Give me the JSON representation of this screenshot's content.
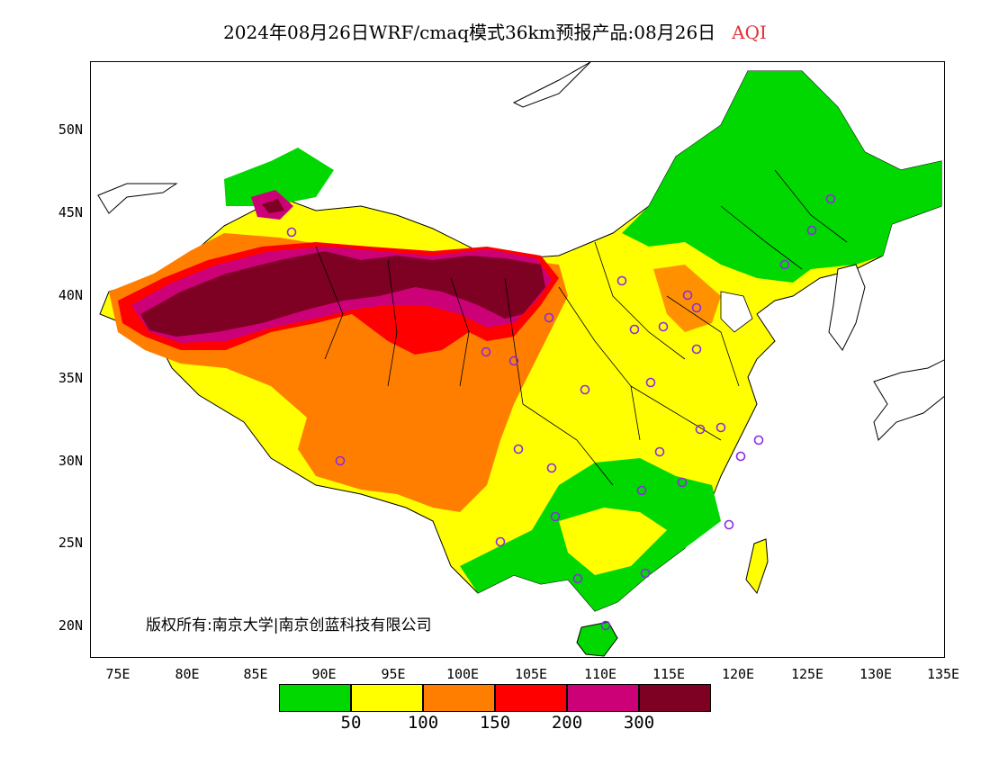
{
  "title": {
    "main": "2024年08月26日WRF/cmaq模式36km预报产品:08月26日",
    "variable": "AQI"
  },
  "copyright": "版权所有:南京大学|南京创蓝科技有限公司",
  "axes": {
    "lat_labels": [
      "50N",
      "45N",
      "40N",
      "35N",
      "30N",
      "25N",
      "20N"
    ],
    "lon_labels": [
      "75E",
      "80E",
      "85E",
      "90E",
      "95E",
      "100E",
      "105E",
      "110E",
      "115E",
      "120E",
      "125E",
      "130E",
      "135E"
    ]
  },
  "legend": {
    "colors": [
      "#00d800",
      "#ffff00",
      "#ff7e00",
      "#ff0000",
      "#cc0077",
      "#7e0023"
    ],
    "ticks": [
      "50",
      "100",
      "150",
      "200",
      "300"
    ]
  },
  "colors": {
    "good": "#00d800",
    "moderate": "#ffff00",
    "usg": "#ff7e00",
    "unhealthy": "#ff0000",
    "very_unhealthy": "#cc0077",
    "hazardous": "#7e0023",
    "station_marker": "#8a2be2"
  }
}
